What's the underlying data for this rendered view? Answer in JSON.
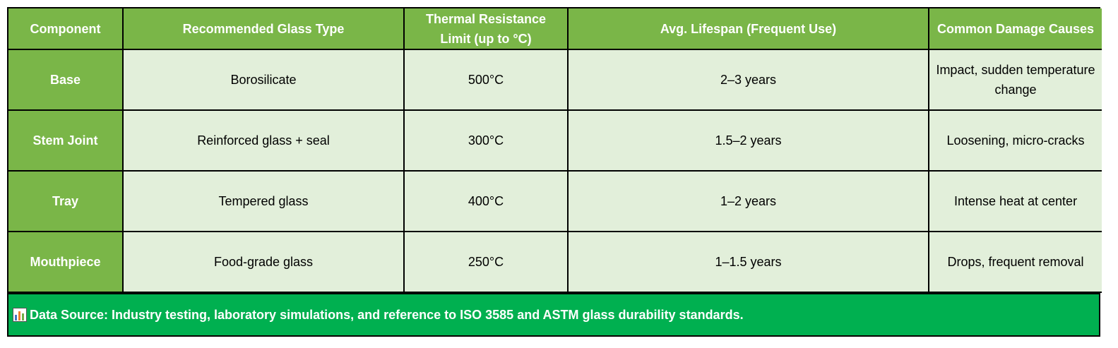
{
  "table": {
    "header": [
      "Component",
      "Recommended Glass Type",
      "Thermal Resistance Limit (up to °C)",
      "Avg. Lifespan (Frequent Use)",
      "Common Damage Causes"
    ],
    "rows": [
      [
        "Base",
        "Borosilicate",
        "500°C",
        "2–3 years",
        "Impact, sudden temperature change"
      ],
      [
        "Stem Joint",
        "Reinforced glass + seal",
        "300°C",
        "1.5–2 years",
        "Loosening, micro-cracks"
      ],
      [
        "Tray",
        "Tempered glass",
        "400°C",
        "1–2 years",
        "Intense heat at center"
      ],
      [
        "Mouthpiece",
        "Food-grade glass",
        "250°C",
        "1–1.5 years",
        "Drops, frequent removal"
      ]
    ]
  },
  "footer": {
    "text": "Data Source: Industry testing, laboratory simulations, and reference to ISO 3585 and ASTM glass durability standards."
  }
}
